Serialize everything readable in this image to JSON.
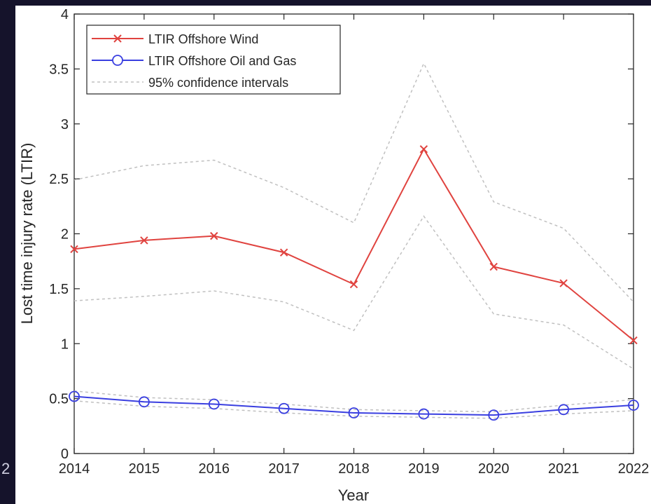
{
  "chart_data": {
    "type": "line",
    "xlabel": "Year",
    "ylabel": "Lost time injury rate (LTIR)",
    "x": [
      2014,
      2015,
      2016,
      2017,
      2018,
      2019,
      2020,
      2021,
      2022
    ],
    "xlim": [
      2014,
      2022
    ],
    "ylim": [
      0,
      4
    ],
    "yticks": [
      0,
      0.5,
      1,
      1.5,
      2,
      2.5,
      3,
      3.5,
      4
    ],
    "legend_position": "top-left",
    "grid": false,
    "series": [
      {
        "name": "LTIR Offshore Wind",
        "color": "#e0433f",
        "marker": "x",
        "values": [
          1.86,
          1.94,
          1.98,
          1.83,
          1.54,
          2.77,
          1.7,
          1.55,
          1.03
        ],
        "ci_upper": [
          2.49,
          2.62,
          2.67,
          2.42,
          2.1,
          3.55,
          2.29,
          2.05,
          1.38
        ],
        "ci_lower": [
          1.39,
          1.43,
          1.48,
          1.38,
          1.12,
          2.16,
          1.27,
          1.17,
          0.77
        ]
      },
      {
        "name": "LTIR Offshore Oil and Gas",
        "color": "#3a3fe0",
        "marker": "o",
        "values": [
          0.52,
          0.47,
          0.45,
          0.41,
          0.37,
          0.36,
          0.35,
          0.4,
          0.44
        ],
        "ci_upper": [
          0.57,
          0.51,
          0.49,
          0.45,
          0.4,
          0.39,
          0.38,
          0.44,
          0.49
        ],
        "ci_lower": [
          0.48,
          0.43,
          0.41,
          0.37,
          0.34,
          0.33,
          0.32,
          0.36,
          0.39
        ]
      }
    ],
    "ci_legend_label": "95% confidence intervals",
    "ci_color": "#c0c0c0"
  },
  "edge_text": "2"
}
